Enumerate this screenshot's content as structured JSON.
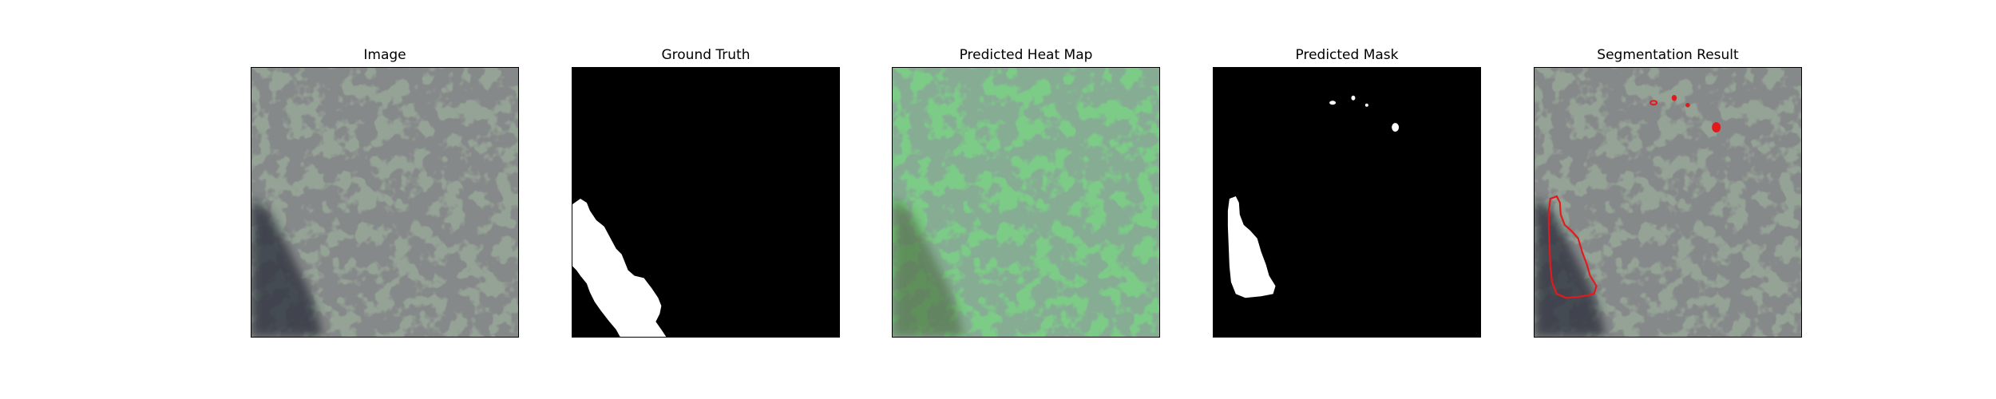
{
  "panels": [
    {
      "title": "Image"
    },
    {
      "title": "Ground Truth"
    },
    {
      "title": "Predicted Heat Map"
    },
    {
      "title": "Predicted Mask"
    },
    {
      "title": "Segmentation Result"
    }
  ],
  "colors": {
    "texture_base": "#8c9a8f",
    "texture_spots": "#3c3f3e",
    "defect_dark": "#2b2f3a",
    "heat_overlay": "#67c46f",
    "mask_bg": "#000000",
    "mask_fg": "#ffffff",
    "contour": "#e31a1c"
  }
}
